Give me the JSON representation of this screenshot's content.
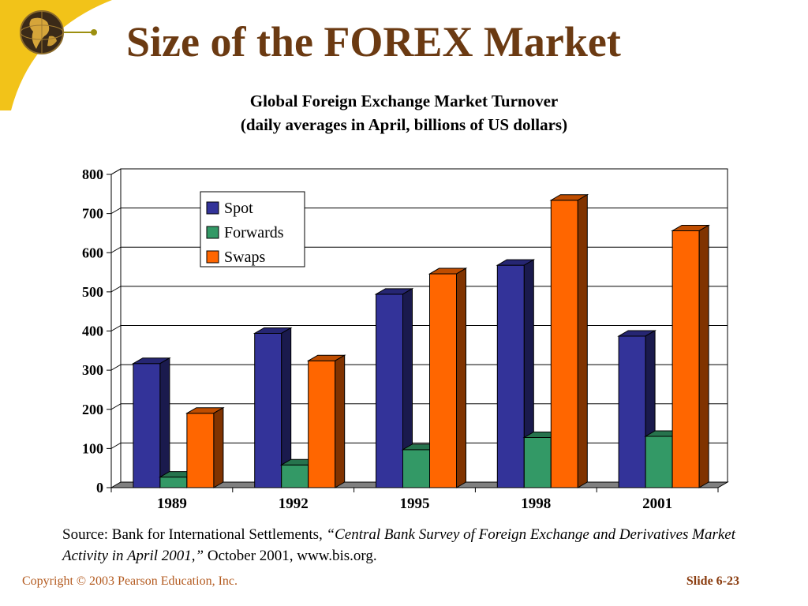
{
  "slide": {
    "title": "Size of the FOREX Market",
    "copyright": "Copyright © 2003 Pearson Education, Inc.",
    "slide_number": "Slide 6-23",
    "logo_icon": "globe-icon",
    "accent_color": "#f2c319"
  },
  "chart_data": {
    "type": "bar",
    "title": "Global Foreign Exchange Market Turnover",
    "subtitle": "(daily averages in April, billions of US dollars)",
    "categories": [
      "1989",
      "1992",
      "1995",
      "1998",
      "2001"
    ],
    "series": [
      {
        "name": "Spot",
        "values": [
          317,
          394,
          494,
          568,
          387
        ],
        "color": "#333399"
      },
      {
        "name": "Forwards",
        "values": [
          27,
          58,
          97,
          128,
          131
        ],
        "color": "#339966"
      },
      {
        "name": "Swaps",
        "values": [
          190,
          324,
          546,
          734,
          656
        ],
        "color": "#ff6600"
      }
    ],
    "y_ticks": [
      "0",
      "100",
      "200",
      "300",
      "400",
      "500",
      "600",
      "700",
      "800"
    ],
    "ylim": [
      0,
      800
    ],
    "grid": true,
    "legend_position": "top-left",
    "three_d": true
  },
  "source": {
    "prefix": "Source: Bank for International Settlements",
    "comma": ", ",
    "italic": "“Central Bank Survey of Foreign Exchange and Derivatives Market Activity in April 2001,”",
    "suffix": " October 2001, www.bis.org."
  }
}
